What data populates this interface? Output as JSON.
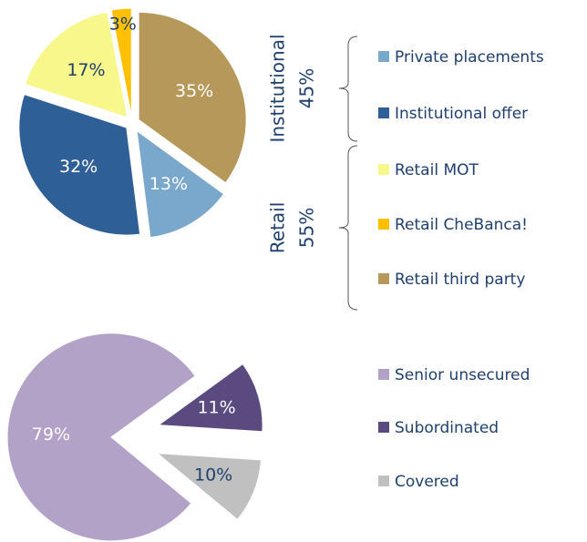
{
  "chart_data": [
    {
      "type": "pie",
      "categories": [
        "Retail third party",
        "Private placements",
        "Institutional offer",
        "Retail MOT",
        "Retail CheBanca!"
      ],
      "values": [
        35,
        13,
        32,
        17,
        3
      ],
      "value_labels": [
        "35%",
        "13%",
        "32%",
        "17%",
        "3%"
      ],
      "colors": [
        "#b5985a",
        "#7aa7cc",
        "#2f5f97",
        "#f7f78c",
        "#ffc000"
      ],
      "legend_order": [
        1,
        2,
        3,
        4,
        0
      ],
      "groups": [
        {
          "name": "Institutional",
          "value": 45,
          "label": "45%"
        },
        {
          "name": "Retail",
          "value": 55,
          "label": "55%"
        }
      ]
    },
    {
      "type": "pie",
      "categories": [
        "Subordinated",
        "Covered",
        "Senior unsecured"
      ],
      "values": [
        11,
        10,
        79
      ],
      "value_labels": [
        "11%",
        "10%",
        "79%"
      ],
      "colors": [
        "#5b4a7f",
        "#c0c0c0",
        "#b3a2c8"
      ],
      "legend_order": [
        2,
        0,
        1
      ]
    }
  ]
}
